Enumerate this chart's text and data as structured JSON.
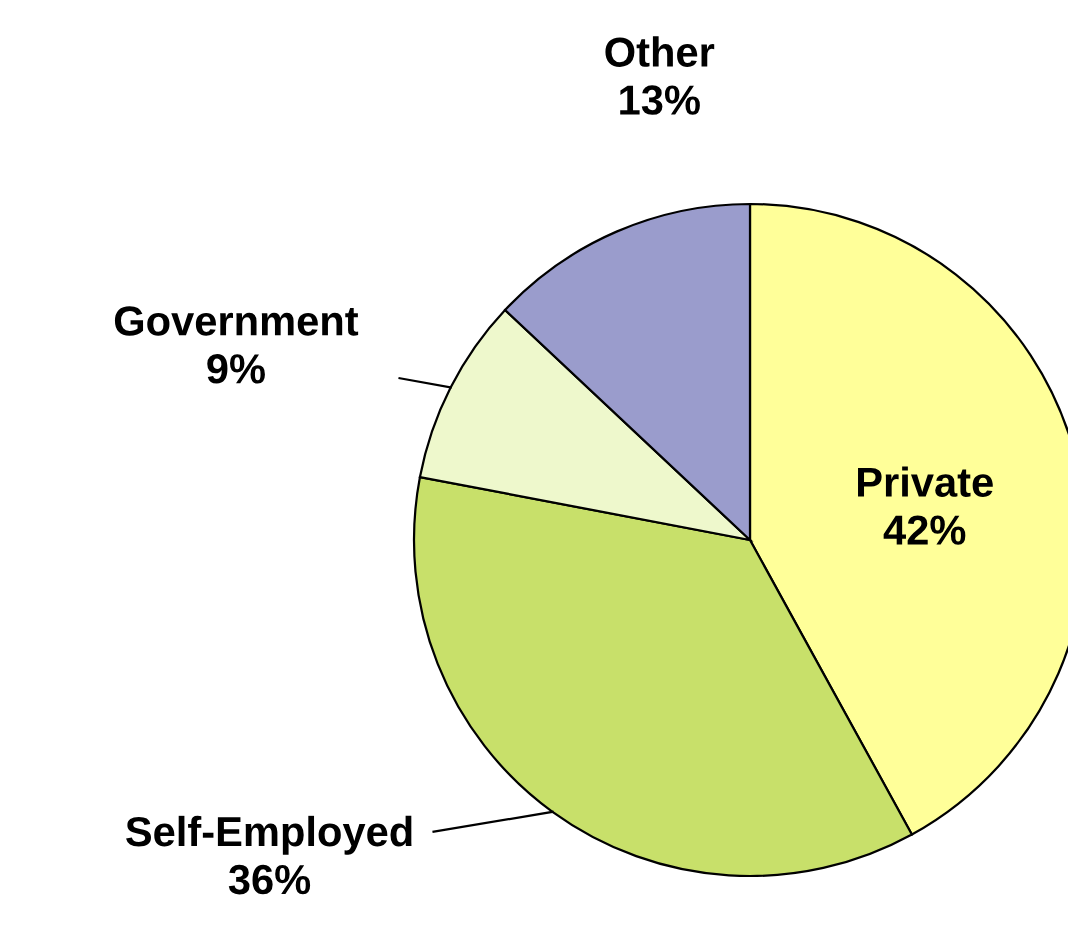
{
  "chart_data": {
    "type": "pie",
    "categories": [
      "Private",
      "Self-Employed",
      "Government",
      "Other"
    ],
    "values": [
      42,
      36,
      9,
      13
    ],
    "value_labels": [
      "42%",
      "36%",
      "9%",
      "13%"
    ],
    "colors": [
      "#ffff99",
      "#c8e06a",
      "#eef8cc",
      "#9a9ccc"
    ]
  }
}
